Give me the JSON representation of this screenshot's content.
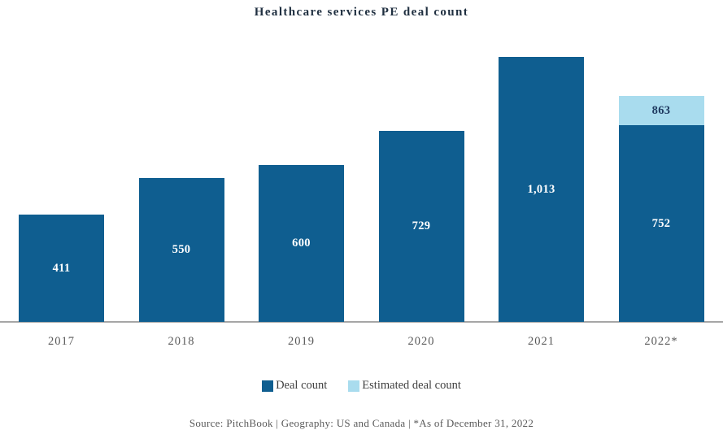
{
  "chart_data": {
    "type": "bar",
    "title": "Healthcare services PE deal count",
    "categories": [
      "2017",
      "2018",
      "2019",
      "2020",
      "2021",
      "2022*"
    ],
    "series": [
      {
        "name": "Deal count",
        "values": [
          411,
          550,
          600,
          729,
          1013,
          752
        ]
      },
      {
        "name": "Estimated deal count",
        "values": [
          null,
          null,
          null,
          null,
          null,
          863
        ]
      }
    ],
    "bar_value_labels": [
      "411",
      "550",
      "600",
      "729",
      "1,013",
      "752"
    ],
    "estimated_total_label": "863",
    "legend": [
      {
        "label": "Deal count",
        "color": "#0f5e90"
      },
      {
        "label": "Estimated deal count",
        "color": "#a9dcee"
      }
    ],
    "legend_position": "bottom",
    "grid": false,
    "xlabel": "",
    "ylabel": "",
    "ylim": [
      0,
      1109
    ],
    "colors": {
      "deal": "#0f5e90",
      "estimated": "#a9dcee",
      "axis_line": "#a6a6a6",
      "value_label_on_dark": "#ffffff",
      "value_label_on_light": "#1f3a60"
    }
  },
  "footer": {
    "source_line": "Source: PitchBook | Geography: US and Canada | *As of December 31, 2022"
  }
}
